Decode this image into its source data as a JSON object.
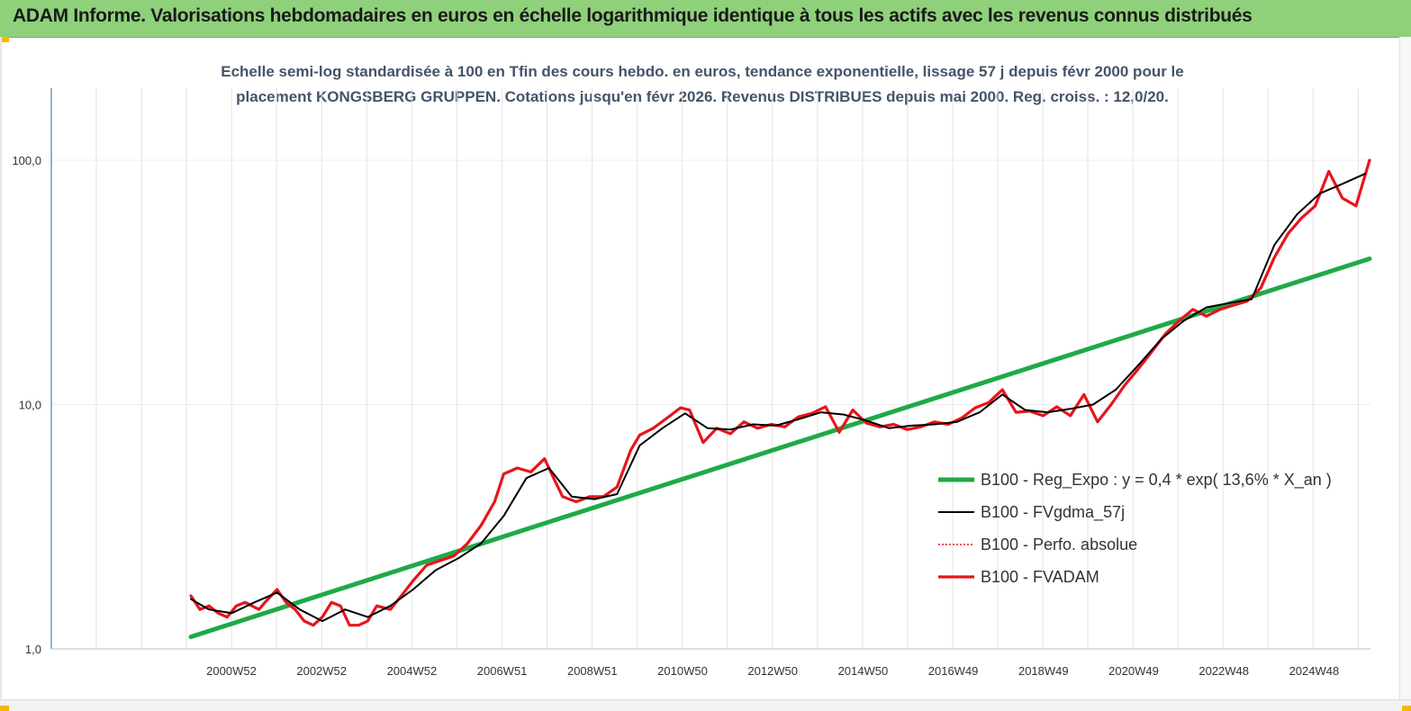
{
  "header": {
    "banner_title": "ADAM Informe. Valorisations hebdomadaires en euros en échelle logarithmique identique à tous les actifs avec les revenus connus distribués"
  },
  "chart_data": {
    "type": "line",
    "title_line1": "Echelle semi-log standardisée à 100 en Tfin des cours hebdo. en euros, tendance exponentielle, lissage 57 j depuis févr 2000 pour le",
    "title_line2": "placement KONGSBERG GRUPPEN. Cotations jusqu'en févr 2026. Revenus DISTRIBUES  depuis mai 2000. Reg.  croiss. : 12,0/20.",
    "y_scale": "log",
    "ylim": [
      1,
      100
    ],
    "y_ticks": [
      "1,0",
      "10,0",
      "100,0"
    ],
    "x_ticks": [
      "2000W52",
      "2002W52",
      "2004W52",
      "2006W51",
      "2008W51",
      "2010W50",
      "2012W50",
      "2014W50",
      "2016W49",
      "2018W49",
      "2020W49",
      "2022W48",
      "2024W48"
    ],
    "x_range": [
      2000.1,
      2026.1
    ],
    "grid": "vertical",
    "legend_position": "right-center",
    "series": [
      {
        "name": "B100 - Reg_Expo : y = 0,4 * exp( 13,6% *  X_an )",
        "color": "#1faa46",
        "x": [
          2000.1,
          2026.1
        ],
        "y": [
          1.12,
          39.5
        ]
      },
      {
        "name": "B100 - FVgdma_57j",
        "color": "#000000",
        "x": [
          2000.1,
          2000.5,
          2001.0,
          2001.5,
          2002.0,
          2002.5,
          2003.0,
          2003.5,
          2004.0,
          2004.5,
          2005.0,
          2005.5,
          2006.0,
          2006.5,
          2007.0,
          2007.5,
          2008.0,
          2008.5,
          2009.0,
          2009.5,
          2010.0,
          2010.5,
          2011.0,
          2011.5,
          2012.0,
          2012.5,
          2013.0,
          2013.5,
          2014.0,
          2014.5,
          2015.0,
          2015.5,
          2016.0,
          2016.5,
          2017.0,
          2017.5,
          2018.0,
          2018.5,
          2019.0,
          2019.5,
          2020.0,
          2020.5,
          2021.0,
          2021.5,
          2022.0,
          2022.5,
          2023.0,
          2023.5,
          2024.0,
          2024.5,
          2025.0,
          2025.5,
          2026.0
        ],
        "y": [
          1.6,
          1.45,
          1.4,
          1.55,
          1.7,
          1.45,
          1.3,
          1.45,
          1.35,
          1.5,
          1.75,
          2.1,
          2.35,
          2.7,
          3.5,
          5.0,
          5.5,
          4.2,
          4.1,
          4.3,
          6.8,
          8.0,
          9.2,
          8.0,
          7.9,
          8.3,
          8.2,
          8.7,
          9.3,
          9.1,
          8.6,
          8.0,
          8.2,
          8.3,
          8.5,
          9.3,
          11.0,
          9.5,
          9.3,
          9.6,
          10.0,
          11.5,
          14.5,
          18.5,
          22.0,
          25.0,
          26.0,
          27.0,
          45.0,
          60.0,
          73.0,
          80.0,
          88.0
        ]
      },
      {
        "name": "B100 - Perfo. absolue",
        "color": "#e8141b",
        "x": [],
        "y": []
      },
      {
        "name": "B100 - FVADAM",
        "color": "#e8141b",
        "x": [
          2000.1,
          2000.3,
          2000.5,
          2000.7,
          2000.9,
          2001.1,
          2001.3,
          2001.6,
          2001.8,
          2002.0,
          2002.2,
          2002.4,
          2002.6,
          2002.8,
          2003.0,
          2003.2,
          2003.4,
          2003.6,
          2003.8,
          2004.0,
          2004.2,
          2004.5,
          2004.8,
          2005.0,
          2005.3,
          2005.6,
          2005.9,
          2006.2,
          2006.5,
          2006.8,
          2007.0,
          2007.3,
          2007.6,
          2007.9,
          2008.1,
          2008.3,
          2008.6,
          2008.9,
          2009.2,
          2009.5,
          2009.8,
          2010.0,
          2010.3,
          2010.6,
          2010.9,
          2011.1,
          2011.4,
          2011.7,
          2012.0,
          2012.3,
          2012.6,
          2012.9,
          2013.2,
          2013.5,
          2013.8,
          2014.1,
          2014.4,
          2014.7,
          2015.0,
          2015.3,
          2015.6,
          2015.9,
          2016.2,
          2016.5,
          2016.8,
          2017.1,
          2017.4,
          2017.7,
          2018.0,
          2018.3,
          2018.6,
          2018.9,
          2019.2,
          2019.5,
          2019.8,
          2020.1,
          2020.4,
          2020.7,
          2021.0,
          2021.3,
          2021.6,
          2021.9,
          2022.2,
          2022.5,
          2022.8,
          2023.1,
          2023.4,
          2023.7,
          2024.0,
          2024.3,
          2024.6,
          2024.9,
          2025.2,
          2025.5,
          2025.8,
          2026.1
        ],
        "y": [
          1.65,
          1.45,
          1.5,
          1.4,
          1.35,
          1.5,
          1.55,
          1.45,
          1.6,
          1.75,
          1.55,
          1.45,
          1.3,
          1.25,
          1.35,
          1.55,
          1.5,
          1.25,
          1.25,
          1.3,
          1.5,
          1.45,
          1.7,
          1.9,
          2.2,
          2.3,
          2.4,
          2.7,
          3.2,
          4.0,
          5.2,
          5.5,
          5.3,
          6.0,
          5.0,
          4.2,
          4.0,
          4.2,
          4.2,
          4.6,
          6.5,
          7.5,
          8.0,
          8.8,
          9.7,
          9.5,
          7.0,
          8.0,
          7.6,
          8.5,
          8.0,
          8.3,
          8.1,
          8.9,
          9.2,
          9.8,
          7.7,
          9.5,
          8.4,
          8.1,
          8.3,
          7.9,
          8.1,
          8.5,
          8.3,
          8.8,
          9.7,
          10.2,
          11.5,
          9.3,
          9.4,
          9.0,
          9.8,
          9.0,
          11.0,
          8.5,
          10.0,
          12.0,
          14.0,
          16.5,
          19.5,
          22.0,
          24.5,
          23.0,
          24.5,
          25.5,
          26.5,
          30.0,
          40.0,
          50.0,
          58.0,
          65.0,
          90.0,
          70.0,
          65.0,
          100.0
        ]
      }
    ]
  }
}
